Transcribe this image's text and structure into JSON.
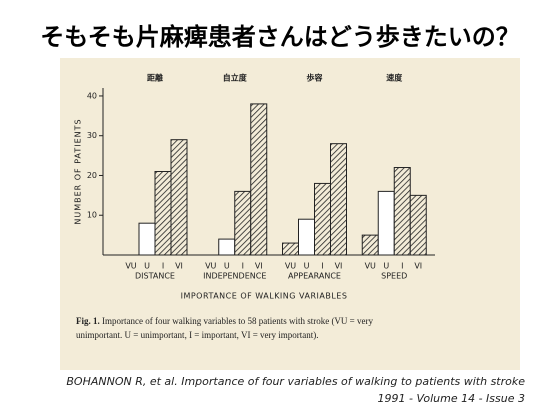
{
  "slide_title": "そもそも片麻痺患者さんはどう歩きたいの？",
  "chart_data": {
    "type": "grouped_bar",
    "group_annotations": [
      "距離",
      "自立度",
      "歩容",
      "速度"
    ],
    "categories": [
      "DISTANCE",
      "INDEPENDENCE",
      "APPEARANCE",
      "SPEED"
    ],
    "series": [
      {
        "name": "VU",
        "color": "#222222",
        "hatched": true,
        "values": [
          0,
          0,
          3,
          5
        ]
      },
      {
        "name": "U",
        "color": "#222222",
        "hatched": false,
        "values": [
          8,
          4,
          9,
          16
        ]
      },
      {
        "name": "I",
        "color": "#222222",
        "hatched": true,
        "values": [
          21,
          16,
          18,
          22
        ]
      },
      {
        "name": "VI",
        "color": "#222222",
        "hatched": true,
        "values": [
          29,
          38,
          28,
          15
        ]
      }
    ],
    "ylim": [
      0,
      42
    ],
    "yticks": [
      10,
      20,
      30,
      40
    ],
    "y_label": "NUMBER OF PATIENTS",
    "x_label": "IMPORTANCE OF WALKING VARIABLES"
  },
  "caption": {
    "label": "Fig. 1.",
    "line1": "Importance of four walking variables to 58 patients with stroke (VU = very",
    "line2": "unimportant. U = unimportant, I = important, VI = very important)."
  },
  "citation": {
    "line1": "BOHANNON R, et al. Importance of four variables of walking to patients with stroke",
    "line2": "1991 - Volume 14 - Issue 3"
  }
}
